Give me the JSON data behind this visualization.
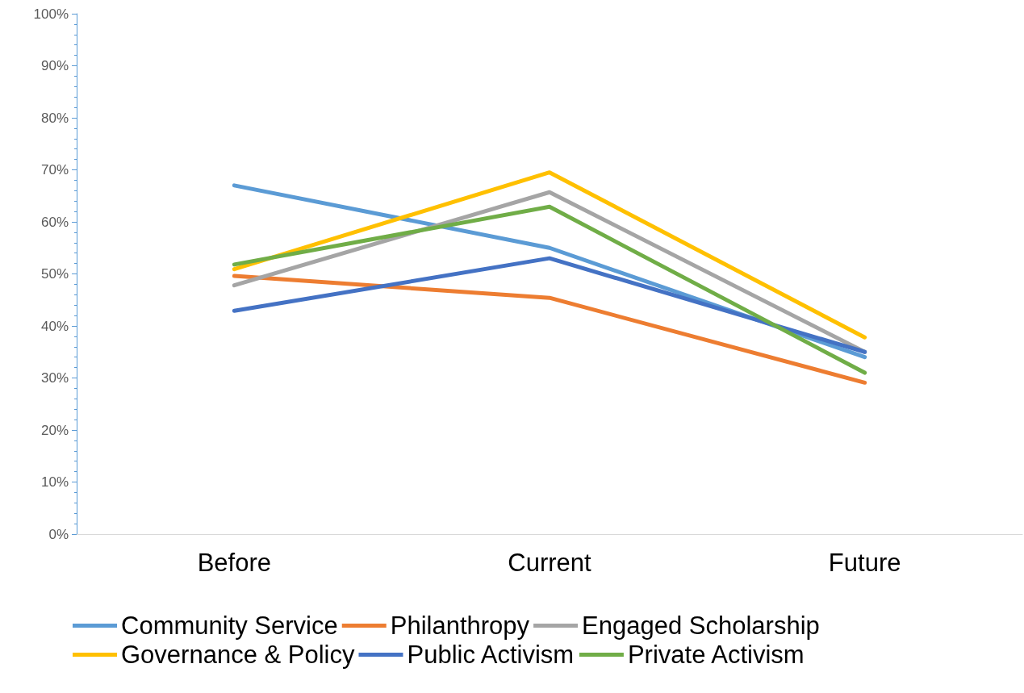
{
  "chart_data": {
    "type": "line",
    "categories": [
      "Before",
      "Current",
      "Future"
    ],
    "series": [
      {
        "name": "Community Service",
        "color": "#5b9bd5",
        "values": [
          67,
          55,
          34
        ]
      },
      {
        "name": "Philanthropy",
        "color": "#ed7d31",
        "values": [
          49.6,
          45.4,
          29.1
        ]
      },
      {
        "name": "Engaged Scholarship",
        "color": "#a5a5a5",
        "values": [
          47.8,
          65.7,
          35
        ]
      },
      {
        "name": "Governance & Policy",
        "color": "#ffc000",
        "values": [
          50.9,
          69.5,
          37.8
        ]
      },
      {
        "name": "Public Activism",
        "color": "#4472c4",
        "values": [
          42.9,
          53,
          35
        ]
      },
      {
        "name": "Private Activism",
        "color": "#70ad47",
        "values": [
          51.8,
          62.9,
          31
        ]
      }
    ],
    "ylim": [
      0,
      100
    ],
    "yticks": [
      {
        "value": 0,
        "label": "0%"
      },
      {
        "value": 10,
        "label": "10%"
      },
      {
        "value": 20,
        "label": "20%"
      },
      {
        "value": 30,
        "label": "30%"
      },
      {
        "value": 40,
        "label": "40%"
      },
      {
        "value": 50,
        "label": "50%"
      },
      {
        "value": 60,
        "label": "60%"
      },
      {
        "value": 70,
        "label": "70%"
      },
      {
        "value": 80,
        "label": "80%"
      },
      {
        "value": 90,
        "label": "90%"
      },
      {
        "value": 100,
        "label": "100%"
      }
    ],
    "grid": false,
    "legend": "bottom",
    "marker": "none",
    "line_style": "solid"
  }
}
